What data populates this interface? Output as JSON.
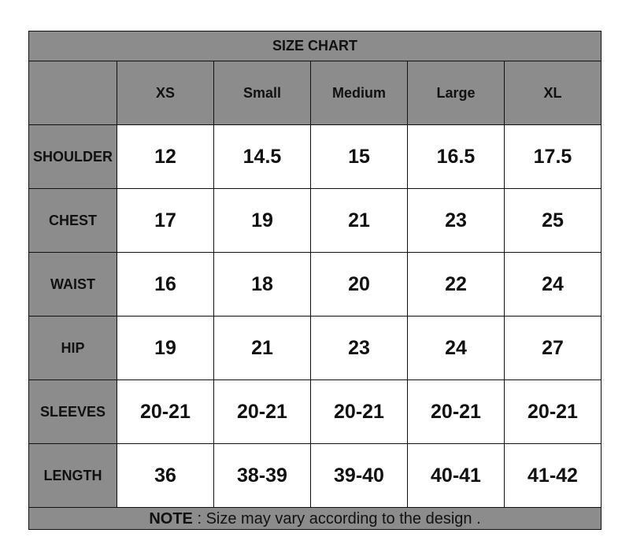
{
  "title": "SIZE CHART",
  "colors": {
    "header_bg": "#8c8c8c",
    "cell_bg": "#ffffff",
    "border": "#111111"
  },
  "sizes": [
    "XS",
    "Small",
    "Medium",
    "Large",
    "XL"
  ],
  "rows": [
    {
      "label": "SHOULDER",
      "values": [
        "12",
        "14.5",
        "15",
        "16.5",
        "17.5"
      ]
    },
    {
      "label": "CHEST",
      "values": [
        "17",
        "19",
        "21",
        "23",
        "25"
      ]
    },
    {
      "label": "WAIST",
      "values": [
        "16",
        "18",
        "20",
        "22",
        "24"
      ]
    },
    {
      "label": "HIP",
      "values": [
        "19",
        "21",
        "23",
        "24",
        "27"
      ]
    },
    {
      "label": "SLEEVES",
      "values": [
        "20-21",
        "20-21",
        "20-21",
        "20-21",
        "20-21"
      ]
    },
    {
      "label": "LENGTH",
      "values": [
        "36",
        "38-39",
        "39-40",
        "40-41",
        "41-42"
      ]
    }
  ],
  "note": {
    "label": "NOTE",
    "text": " : Size may vary according to the design ."
  }
}
